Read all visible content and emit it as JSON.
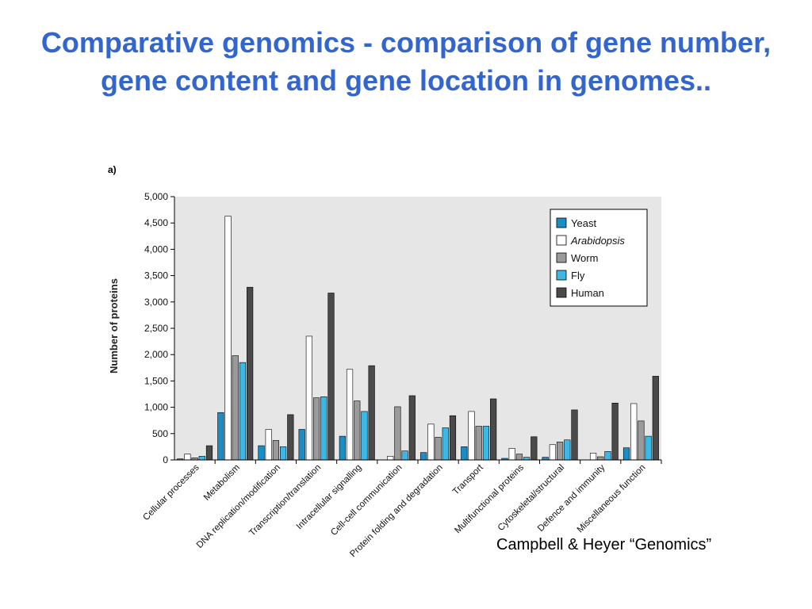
{
  "slide": {
    "title": "Comparative genomics - comparison of gene number, gene content and gene location in genomes..",
    "citation": "Campbell & Heyer “Genomics”"
  },
  "chart_data": {
    "type": "bar",
    "panel_label": "a)",
    "ylabel": "Number of proteins",
    "xlabel": "",
    "ylim": [
      0,
      5000
    ],
    "yticks": [
      0,
      500,
      1000,
      1500,
      2000,
      2500,
      3000,
      3500,
      4000,
      4500,
      5000
    ],
    "ytick_labels": [
      "0",
      "500",
      "1,000",
      "1,500",
      "2,000",
      "2,500",
      "3,000",
      "3,500",
      "4,000",
      "4,500",
      "5,000"
    ],
    "grid": false,
    "legend_position": "top-right",
    "categories": [
      "Cellular processes",
      "Metabolism",
      "DNA replication/modification",
      "Transcription/translation",
      "Intracellular signalling",
      "Cell-cell communication",
      "Protein folding and degradation",
      "Transport",
      "Multifunctional proteins",
      "Cytoskeletal/structural",
      "Defence and immunity",
      "Miscellaneous function"
    ],
    "series": [
      {
        "name": "Yeast",
        "color": "#1a8ec4",
        "values": [
          20,
          900,
          270,
          580,
          450,
          0,
          140,
          250,
          30,
          50,
          0,
          230
        ]
      },
      {
        "name": "Arabidopsis",
        "italic": true,
        "color": "#ffffff",
        "values": [
          110,
          4630,
          580,
          2350,
          1720,
          70,
          680,
          920,
          220,
          290,
          130,
          1070
        ]
      },
      {
        "name": "Worm",
        "color": "#9a9a9a",
        "values": [
          40,
          1980,
          370,
          1180,
          1120,
          1010,
          430,
          640,
          110,
          340,
          60,
          740
        ]
      },
      {
        "name": "Fly",
        "color": "#3bb8e6",
        "values": [
          70,
          1850,
          250,
          1200,
          920,
          170,
          610,
          640,
          50,
          380,
          160,
          450
        ]
      },
      {
        "name": "Human",
        "color": "#4a4a4a",
        "values": [
          270,
          3280,
          860,
          3170,
          1790,
          1220,
          840,
          1160,
          440,
          950,
          1080,
          1590
        ]
      }
    ]
  }
}
